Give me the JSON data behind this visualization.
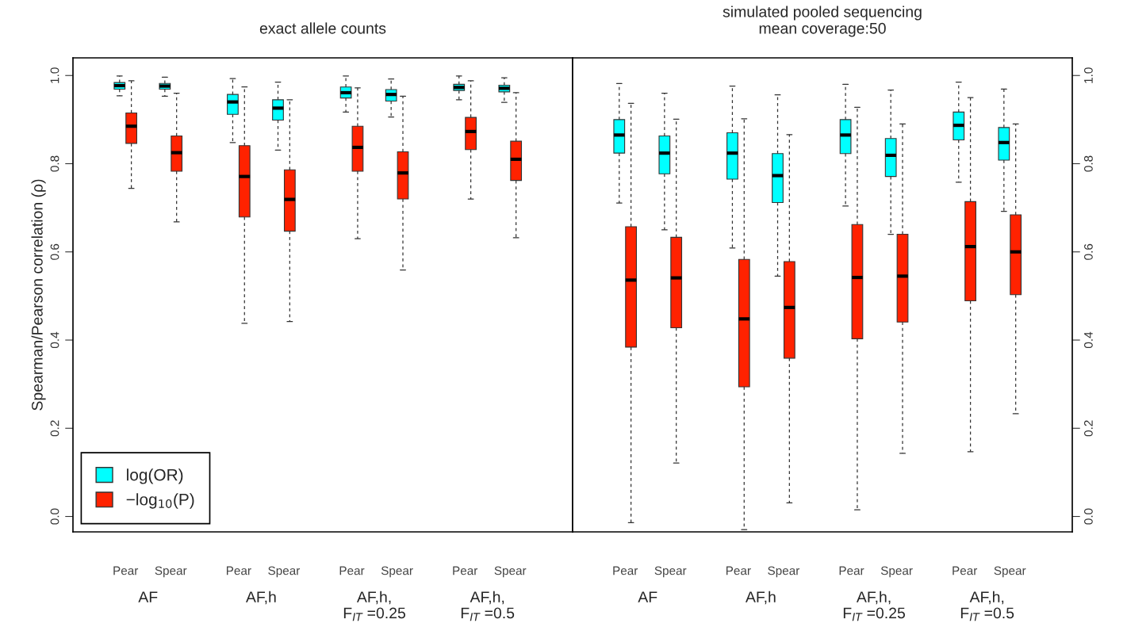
{
  "chart_data": [
    {
      "type": "box",
      "title": "exact allele counts",
      "ylabel": "Spearman/Pearson correlation (ρ)",
      "categories": [
        "Pear",
        "Spear",
        "Pear",
        "Spear",
        "Pear",
        "Spear",
        "Pear",
        "Spear"
      ],
      "annotations": [
        "AF",
        "AF,h",
        "AF,h,\nF$_{IT}$ =0.25",
        "AF,h,\nF$_{IT}$ =0.5"
      ],
      "ylim": [
        -0.035,
        1.04
      ],
      "yticks": [
        {
          "value": 0,
          "label": "0.0"
        },
        {
          "value": 0.2,
          "label": "0.2"
        },
        {
          "value": 0.4,
          "label": "0.4"
        },
        {
          "value": 0.6,
          "label": "0.6"
        },
        {
          "value": 0.8,
          "label": "0.8"
        },
        {
          "value": 1,
          "label": "1.0"
        }
      ],
      "legend": "bottom left",
      "series": [
        {
          "name": "log(OR)",
          "color": "#00ffff",
          "boxes": [
            {
              "low": 0.954,
              "q1": 0.969,
              "median": 0.977,
              "q3": 0.984,
              "high": 0.999
            },
            {
              "low": 0.953,
              "q1": 0.969,
              "median": 0.976,
              "q3": 0.982,
              "high": 0.996
            },
            {
              "low": 0.848,
              "q1": 0.912,
              "median": 0.94,
              "q3": 0.957,
              "high": 0.993
            },
            {
              "low": 0.831,
              "q1": 0.899,
              "median": 0.926,
              "q3": 0.945,
              "high": 0.985
            },
            {
              "low": 0.917,
              "q1": 0.949,
              "median": 0.961,
              "q3": 0.974,
              "high": 0.999
            },
            {
              "low": 0.906,
              "q1": 0.942,
              "median": 0.957,
              "q3": 0.968,
              "high": 0.992
            },
            {
              "low": 0.945,
              "q1": 0.966,
              "median": 0.973,
              "q3": 0.98,
              "high": 0.999
            },
            {
              "low": 0.939,
              "q1": 0.963,
              "median": 0.971,
              "q3": 0.978,
              "high": 0.995
            }
          ]
        },
        {
          "name": "−log$_{10}$(P)",
          "color": "#ff2200",
          "boxes": [
            {
              "low": 0.744,
              "q1": 0.846,
              "median": 0.885,
              "q3": 0.915,
              "high": 0.988
            },
            {
              "low": 0.668,
              "q1": 0.783,
              "median": 0.825,
              "q3": 0.863,
              "high": 0.96
            },
            {
              "low": 0.438,
              "q1": 0.679,
              "median": 0.771,
              "q3": 0.841,
              "high": 0.974
            },
            {
              "low": 0.442,
              "q1": 0.647,
              "median": 0.719,
              "q3": 0.786,
              "high": 0.945
            },
            {
              "low": 0.63,
              "q1": 0.783,
              "median": 0.837,
              "q3": 0.885,
              "high": 0.972
            },
            {
              "low": 0.559,
              "q1": 0.72,
              "median": 0.779,
              "q3": 0.827,
              "high": 0.953
            },
            {
              "low": 0.72,
              "q1": 0.832,
              "median": 0.873,
              "q3": 0.905,
              "high": 0.988
            },
            {
              "low": 0.632,
              "q1": 0.762,
              "median": 0.81,
              "q3": 0.851,
              "high": 0.961
            }
          ]
        }
      ]
    },
    {
      "type": "box",
      "title": "simulated pooled sequencing\nmean coverage:50",
      "categories": [
        "Pear",
        "Spear",
        "Pear",
        "Spear",
        "Pear",
        "Spear",
        "Pear",
        "Spear"
      ],
      "annotations": [
        "AF",
        "AF,h",
        "AF,h,\nF$_{IT}$ =0.25",
        "AF,h,\nF$_{IT}$ =0.5"
      ],
      "y2lim": [
        -0.035,
        1.04
      ],
      "y2ticks": [
        {
          "value": 0,
          "label": "0.0"
        },
        {
          "value": 0.2,
          "label": "0.2"
        },
        {
          "value": 0.4,
          "label": "0.4"
        },
        {
          "value": 0.6,
          "label": "0.6"
        },
        {
          "value": 0.8,
          "label": "0.8"
        },
        {
          "value": 1,
          "label": "1.0"
        }
      ],
      "series": [
        {
          "color": "#00ffff",
          "axis": "y2",
          "boxes": [
            {
              "low": 0.711,
              "q1": 0.824,
              "median": 0.865,
              "q3": 0.9,
              "high": 0.982
            },
            {
              "low": 0.65,
              "q1": 0.777,
              "median": 0.824,
              "q3": 0.863,
              "high": 0.96
            },
            {
              "low": 0.609,
              "q1": 0.765,
              "median": 0.824,
              "q3": 0.87,
              "high": 0.976
            },
            {
              "low": 0.545,
              "q1": 0.712,
              "median": 0.773,
              "q3": 0.823,
              "high": 0.956
            },
            {
              "low": 0.704,
              "q1": 0.823,
              "median": 0.865,
              "q3": 0.9,
              "high": 0.98
            },
            {
              "low": 0.64,
              "q1": 0.771,
              "median": 0.819,
              "q3": 0.857,
              "high": 0.967
            },
            {
              "low": 0.758,
              "q1": 0.854,
              "median": 0.887,
              "q3": 0.917,
              "high": 0.985
            },
            {
              "low": 0.692,
              "q1": 0.808,
              "median": 0.848,
              "q3": 0.882,
              "high": 0.969
            }
          ]
        },
        {
          "color": "#ff2200",
          "axis": "y2",
          "boxes": [
            {
              "low": -0.014,
              "q1": 0.384,
              "median": 0.536,
              "q3": 0.657,
              "high": 0.937
            },
            {
              "low": 0.121,
              "q1": 0.428,
              "median": 0.541,
              "q3": 0.633,
              "high": 0.901
            },
            {
              "low": -0.03,
              "q1": 0.294,
              "median": 0.448,
              "q3": 0.583,
              "high": 0.902
            },
            {
              "low": 0.031,
              "q1": 0.359,
              "median": 0.474,
              "q3": 0.578,
              "high": 0.866
            },
            {
              "low": 0.015,
              "q1": 0.403,
              "median": 0.542,
              "q3": 0.662,
              "high": 0.928
            },
            {
              "low": 0.143,
              "q1": 0.441,
              "median": 0.545,
              "q3": 0.64,
              "high": 0.89
            },
            {
              "low": 0.147,
              "q1": 0.489,
              "median": 0.612,
              "q3": 0.714,
              "high": 0.95
            },
            {
              "low": 0.233,
              "q1": 0.503,
              "median": 0.6,
              "q3": 0.684,
              "high": 0.89
            }
          ]
        }
      ]
    }
  ]
}
